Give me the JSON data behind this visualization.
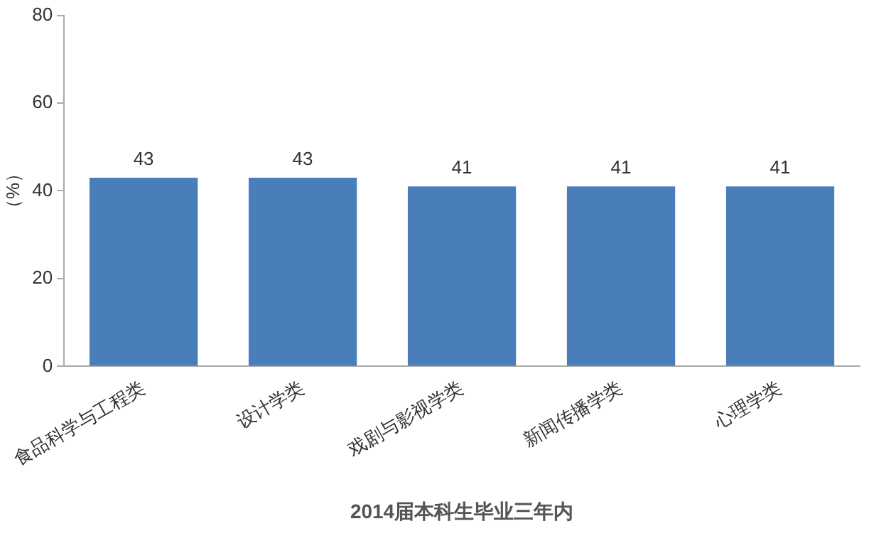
{
  "chart_data": {
    "type": "bar",
    "xlabel": "2014届本科生毕业三年内",
    "ylabel": "（%）",
    "categories": [
      "食品科学与工程类",
      "设计学类",
      "戏剧与影视学类",
      "新闻传播学类",
      "心理学类"
    ],
    "values": [
      43,
      43,
      41,
      41,
      41
    ],
    "color": "#4a7ebb",
    "ylim": [
      0,
      80
    ],
    "yticks": [
      0,
      20,
      40,
      60,
      80
    ],
    "grid": false,
    "legend": false,
    "data_labels": true
  }
}
